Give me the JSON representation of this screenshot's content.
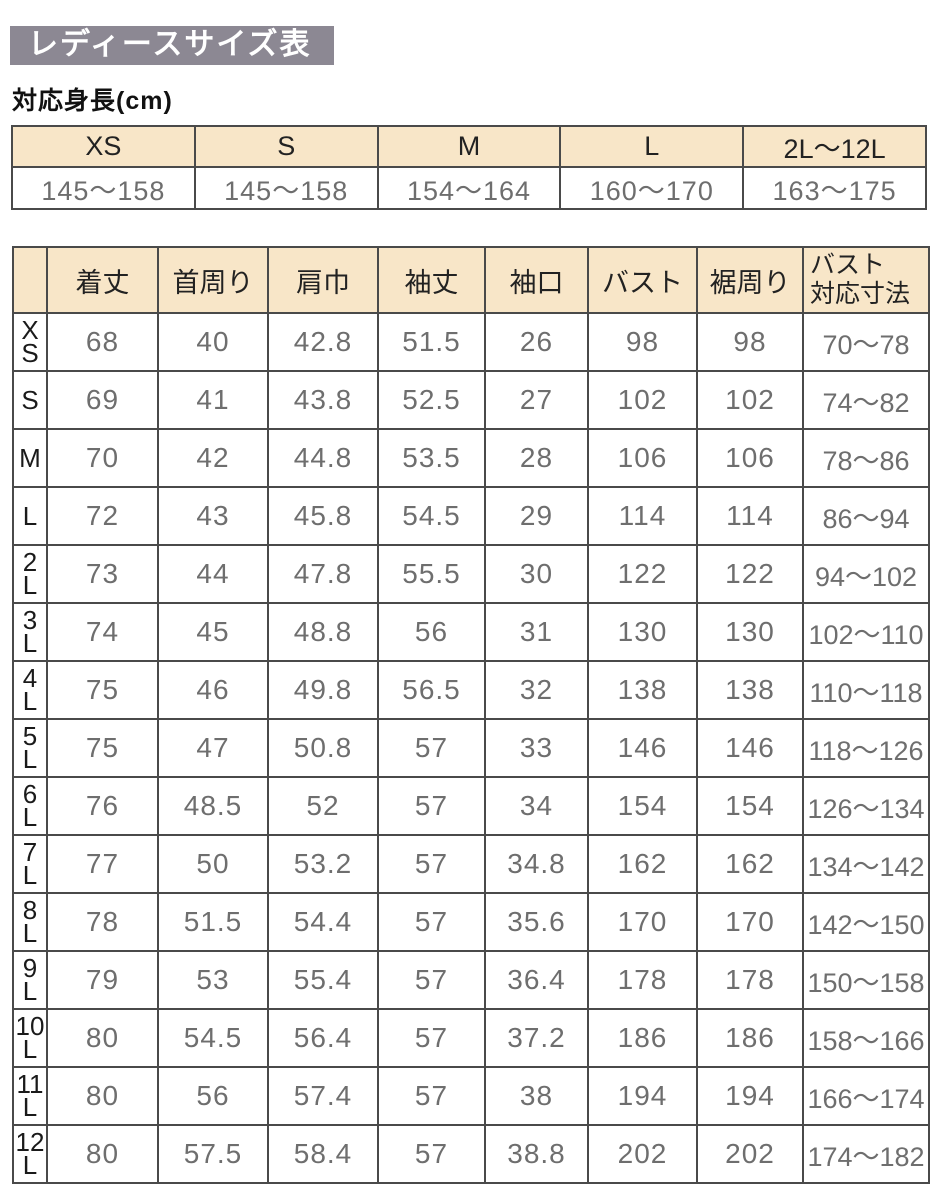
{
  "page": {
    "title": "レディースサイズ表",
    "height_label": "対応身長(cm)"
  },
  "colors": {
    "title_bg": "#8c8893",
    "header_bg": "#f8e6c8",
    "border": "#4a4a4a",
    "value_text": "#6e6e6e",
    "label_text": "#1a1a1a"
  },
  "height_table": {
    "columns": [
      "XS",
      "S",
      "M",
      "L",
      "2L～12L"
    ],
    "values": [
      "145～158",
      "145～158",
      "154～164",
      "160～170",
      "163～175"
    ]
  },
  "size_table": {
    "columns": [
      "着丈",
      "首周り",
      "肩巾",
      "袖丈",
      "袖口",
      "バスト",
      "裾周り",
      "バスト\n対応寸法"
    ],
    "rows": [
      {
        "size": "XS",
        "size_display": "X\nS",
        "values": [
          "68",
          "40",
          "42.8",
          "51.5",
          "26",
          "98",
          "98",
          "70～78"
        ]
      },
      {
        "size": "S",
        "size_display": "S",
        "values": [
          "69",
          "41",
          "43.8",
          "52.5",
          "27",
          "102",
          "102",
          "74～82"
        ]
      },
      {
        "size": "M",
        "size_display": "M",
        "values": [
          "70",
          "42",
          "44.8",
          "53.5",
          "28",
          "106",
          "106",
          "78～86"
        ]
      },
      {
        "size": "L",
        "size_display": "L",
        "values": [
          "72",
          "43",
          "45.8",
          "54.5",
          "29",
          "114",
          "114",
          "86～94"
        ]
      },
      {
        "size": "2L",
        "size_display": "2\nL",
        "values": [
          "73",
          "44",
          "47.8",
          "55.5",
          "30",
          "122",
          "122",
          "94～102"
        ]
      },
      {
        "size": "3L",
        "size_display": "3\nL",
        "values": [
          "74",
          "45",
          "48.8",
          "56",
          "31",
          "130",
          "130",
          "102～110"
        ]
      },
      {
        "size": "4L",
        "size_display": "4\nL",
        "values": [
          "75",
          "46",
          "49.8",
          "56.5",
          "32",
          "138",
          "138",
          "110～118"
        ]
      },
      {
        "size": "5L",
        "size_display": "5\nL",
        "values": [
          "75",
          "47",
          "50.8",
          "57",
          "33",
          "146",
          "146",
          "118～126"
        ]
      },
      {
        "size": "6L",
        "size_display": "6\nL",
        "values": [
          "76",
          "48.5",
          "52",
          "57",
          "34",
          "154",
          "154",
          "126～134"
        ]
      },
      {
        "size": "7L",
        "size_display": "7\nL",
        "values": [
          "77",
          "50",
          "53.2",
          "57",
          "34.8",
          "162",
          "162",
          "134～142"
        ]
      },
      {
        "size": "8L",
        "size_display": "8\nL",
        "values": [
          "78",
          "51.5",
          "54.4",
          "57",
          "35.6",
          "170",
          "170",
          "142～150"
        ]
      },
      {
        "size": "9L",
        "size_display": "9\nL",
        "values": [
          "79",
          "53",
          "55.4",
          "57",
          "36.4",
          "178",
          "178",
          "150～158"
        ]
      },
      {
        "size": "10L",
        "size_display": "10\nL",
        "values": [
          "80",
          "54.5",
          "56.4",
          "57",
          "37.2",
          "186",
          "186",
          "158～166"
        ]
      },
      {
        "size": "11L",
        "size_display": "11\nL",
        "values": [
          "80",
          "56",
          "57.4",
          "57",
          "38",
          "194",
          "194",
          "166～174"
        ]
      },
      {
        "size": "12L",
        "size_display": "12\nL",
        "values": [
          "80",
          "57.5",
          "58.4",
          "57",
          "38.8",
          "202",
          "202",
          "174～182"
        ]
      }
    ]
  }
}
